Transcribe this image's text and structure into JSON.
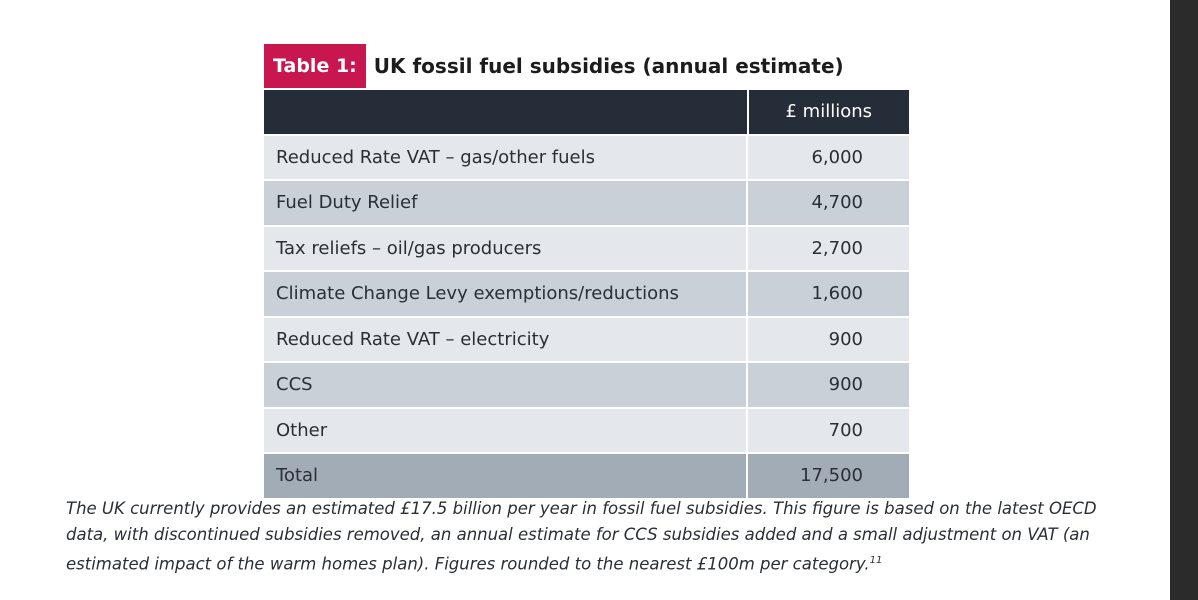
{
  "table": {
    "tag": "Table 1:",
    "title": "UK fossil fuel subsidies (annual estimate)",
    "header": {
      "label": "",
      "value": "£ millions"
    },
    "rows": [
      {
        "label": "Reduced Rate VAT – gas/other fuels",
        "value": "6,000"
      },
      {
        "label": "Fuel Duty Relief",
        "value": "4,700"
      },
      {
        "label": "Tax reliefs – oil/gas producers",
        "value": "2,700"
      },
      {
        "label": "Climate Change Levy exemptions/reductions",
        "value": "1,600"
      },
      {
        "label": "Reduced Rate VAT – electricity",
        "value": "900"
      },
      {
        "label": "CCS",
        "value": "900"
      },
      {
        "label": "Other",
        "value": "700"
      }
    ],
    "total": {
      "label": "Total",
      "value": "17,500"
    }
  },
  "caption": {
    "text": "The UK currently provides an estimated £17.5 billion per year in fossil fuel subsidies. This figure is based on the latest OECD data, with discontinued subsidies removed, an annual estimate for CCS subsidies added and a small adjustment on VAT (an estimated impact of the warm homes plan). Figures rounded to the nearest £100m per category.",
    "footnote": "11"
  },
  "colors": {
    "tag": "#c8174f",
    "header": "#252e38",
    "row_light": "#e4e8ed",
    "row_dark": "#c9d0d8",
    "total": "#a2acb7"
  }
}
